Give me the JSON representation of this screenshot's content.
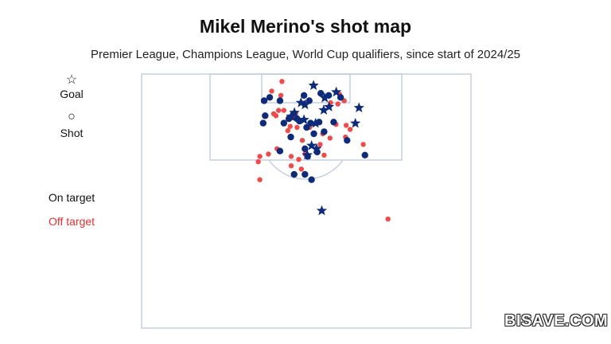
{
  "header": {
    "title": "Mikel Merino's shot map",
    "subtitle": "Premier League, Champions League, World Cup qualifiers, since start of 2024/25"
  },
  "legend": {
    "goal_symbol": "☆",
    "goal_label": "Goal",
    "shot_symbol": "○",
    "shot_label": "Shot",
    "on_target_label": "On target",
    "off_target_label": "Off target"
  },
  "colors": {
    "on_target": "#0d2b7a",
    "off_target": "#ef4b4b",
    "pitch_lines": "#c5cede"
  },
  "watermark": {
    "text": "BISAVE.COM",
    "brand": "sports"
  },
  "chart_data": {
    "type": "scatter",
    "title": "Mikel Merino's shot map",
    "subtitle": "Premier League, Champions League, World Cup qualifiers, since start of 2024/25",
    "xlabel": "",
    "ylabel": "",
    "xlim": [
      0,
      100
    ],
    "ylim": [
      0,
      100
    ],
    "note": "x = position across pitch width (0 left touchline, 100 right touchline); y = distance from goal line along the half (0 goal line, 100 halfway line)",
    "series": [
      {
        "name": "Goal",
        "marker": "star",
        "points": [
          [
            52.2,
            4.5
          ],
          [
            59.1,
            7.1
          ],
          [
            55.6,
            9.4
          ],
          [
            48.4,
            11.3
          ],
          [
            49.6,
            12.1
          ],
          [
            56.9,
            12.9
          ],
          [
            66.0,
            13.3
          ],
          [
            55.3,
            14.2
          ],
          [
            46.4,
            15.2
          ],
          [
            45.4,
            16.7
          ],
          [
            49.3,
            18.0
          ],
          [
            52.8,
            19.4
          ],
          [
            64.9,
            19.4
          ],
          [
            51.6,
            28.2
          ],
          [
            53.1,
            29.4
          ],
          [
            50.3,
            31.9
          ],
          [
            54.7,
            53.8
          ]
        ]
      },
      {
        "name": "On target",
        "marker": "dot",
        "points": [
          [
            38.9,
            9.2
          ],
          [
            37.2,
            10.5
          ],
          [
            42.0,
            10.5
          ],
          [
            54.4,
            7.6
          ],
          [
            49.3,
            8.4
          ],
          [
            56.8,
            8.4
          ],
          [
            50.9,
            10.5
          ],
          [
            60.4,
            9.2
          ],
          [
            37.5,
            16.4
          ],
          [
            44.7,
            17.6
          ],
          [
            47.2,
            17.6
          ],
          [
            47.9,
            18.5
          ],
          [
            51.3,
            19.3
          ],
          [
            53.9,
            18.9
          ],
          [
            50.1,
            21.0
          ],
          [
            58.3,
            18.9
          ],
          [
            52.3,
            23.5
          ],
          [
            55.4,
            22.7
          ],
          [
            36.9,
            19.3
          ],
          [
            43.2,
            19.3
          ],
          [
            45.3,
            24.8
          ],
          [
            62.4,
            26.1
          ],
          [
            49.6,
            29.4
          ],
          [
            42.0,
            30.3
          ],
          [
            53.3,
            30.7
          ],
          [
            50.4,
            32.4
          ],
          [
            67.8,
            31.9
          ],
          [
            49.6,
            39.5
          ],
          [
            51.6,
            41.6
          ],
          [
            46.3,
            39.5
          ]
        ]
      },
      {
        "name": "Off target",
        "marker": "dot",
        "points": [
          [
            42.6,
            2.9
          ],
          [
            39.5,
            6.7
          ],
          [
            42.3,
            8.4
          ],
          [
            41.6,
            14.3
          ],
          [
            43.2,
            14.3
          ],
          [
            61.5,
            10.5
          ],
          [
            60.1,
            8.0
          ],
          [
            57.4,
            11.3
          ],
          [
            59.6,
            11.8
          ],
          [
            40.1,
            15.6
          ],
          [
            46.8,
            15.6
          ],
          [
            45.8,
            17.2
          ],
          [
            40.8,
            16.4
          ],
          [
            47.2,
            21.0
          ],
          [
            45.1,
            20.6
          ],
          [
            44.4,
            22.3
          ],
          [
            51.0,
            21.0
          ],
          [
            59.0,
            19.8
          ],
          [
            62.1,
            20.2
          ],
          [
            55.0,
            23.5
          ],
          [
            63.3,
            21.8
          ],
          [
            57.2,
            25.2
          ],
          [
            61.9,
            24.8
          ],
          [
            48.8,
            26.1
          ],
          [
            54.2,
            27.7
          ],
          [
            41.1,
            29.4
          ],
          [
            38.5,
            31.5
          ],
          [
            49.6,
            31.5
          ],
          [
            55.4,
            31.9
          ],
          [
            35.9,
            32.4
          ],
          [
            45.4,
            32.4
          ],
          [
            47.7,
            33.6
          ],
          [
            35.4,
            34.5
          ],
          [
            45.4,
            36.1
          ],
          [
            48.5,
            37.4
          ],
          [
            35.9,
            41.6
          ],
          [
            67.3,
            27.7
          ],
          [
            74.8,
            57.1
          ]
        ]
      }
    ]
  }
}
